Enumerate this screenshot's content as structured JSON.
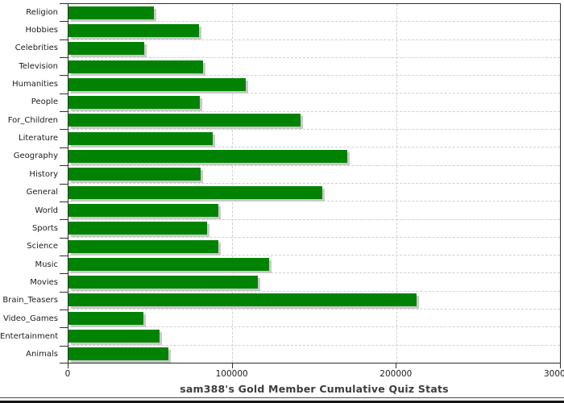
{
  "chart_data": {
    "type": "bar",
    "orientation": "horizontal",
    "title": "sam388's Gold Member Cumulative Quiz Stats",
    "categories": [
      "Religion",
      "Hobbies",
      "Celebrities",
      "Television",
      "Humanities",
      "People",
      "For_Children",
      "Literature",
      "Geography",
      "History",
      "General",
      "World",
      "Sports",
      "Science",
      "Music",
      "Movies",
      "Brain_Teasers",
      "Video_Games",
      "Entertainment",
      "Animals"
    ],
    "values": [
      52000,
      79800,
      46300,
      82000,
      108000,
      80200,
      141600,
      88100,
      170200,
      80700,
      154800,
      91500,
      84500,
      91400,
      122400,
      115500,
      212600,
      45900,
      55500,
      61200
    ],
    "xlim": [
      0,
      300000
    ],
    "x_ticks": [
      {
        "label": "0",
        "value": 0
      },
      {
        "label": "100000",
        "value": 100000
      },
      {
        "label": "200000",
        "value": 200000
      },
      {
        "label": "300000",
        "value": 300000
      }
    ],
    "x_gridline_values": [
      100000,
      200000
    ],
    "grid": "dashed",
    "legend": "none",
    "bar_color": "#028202",
    "bar_shadow_color": "#c9c9c9",
    "gridline_color": "#cfcfcf",
    "axis_color": "#2e2e2e",
    "label_color": "#1c1c1c",
    "title_color": "#3d3d3d"
  }
}
